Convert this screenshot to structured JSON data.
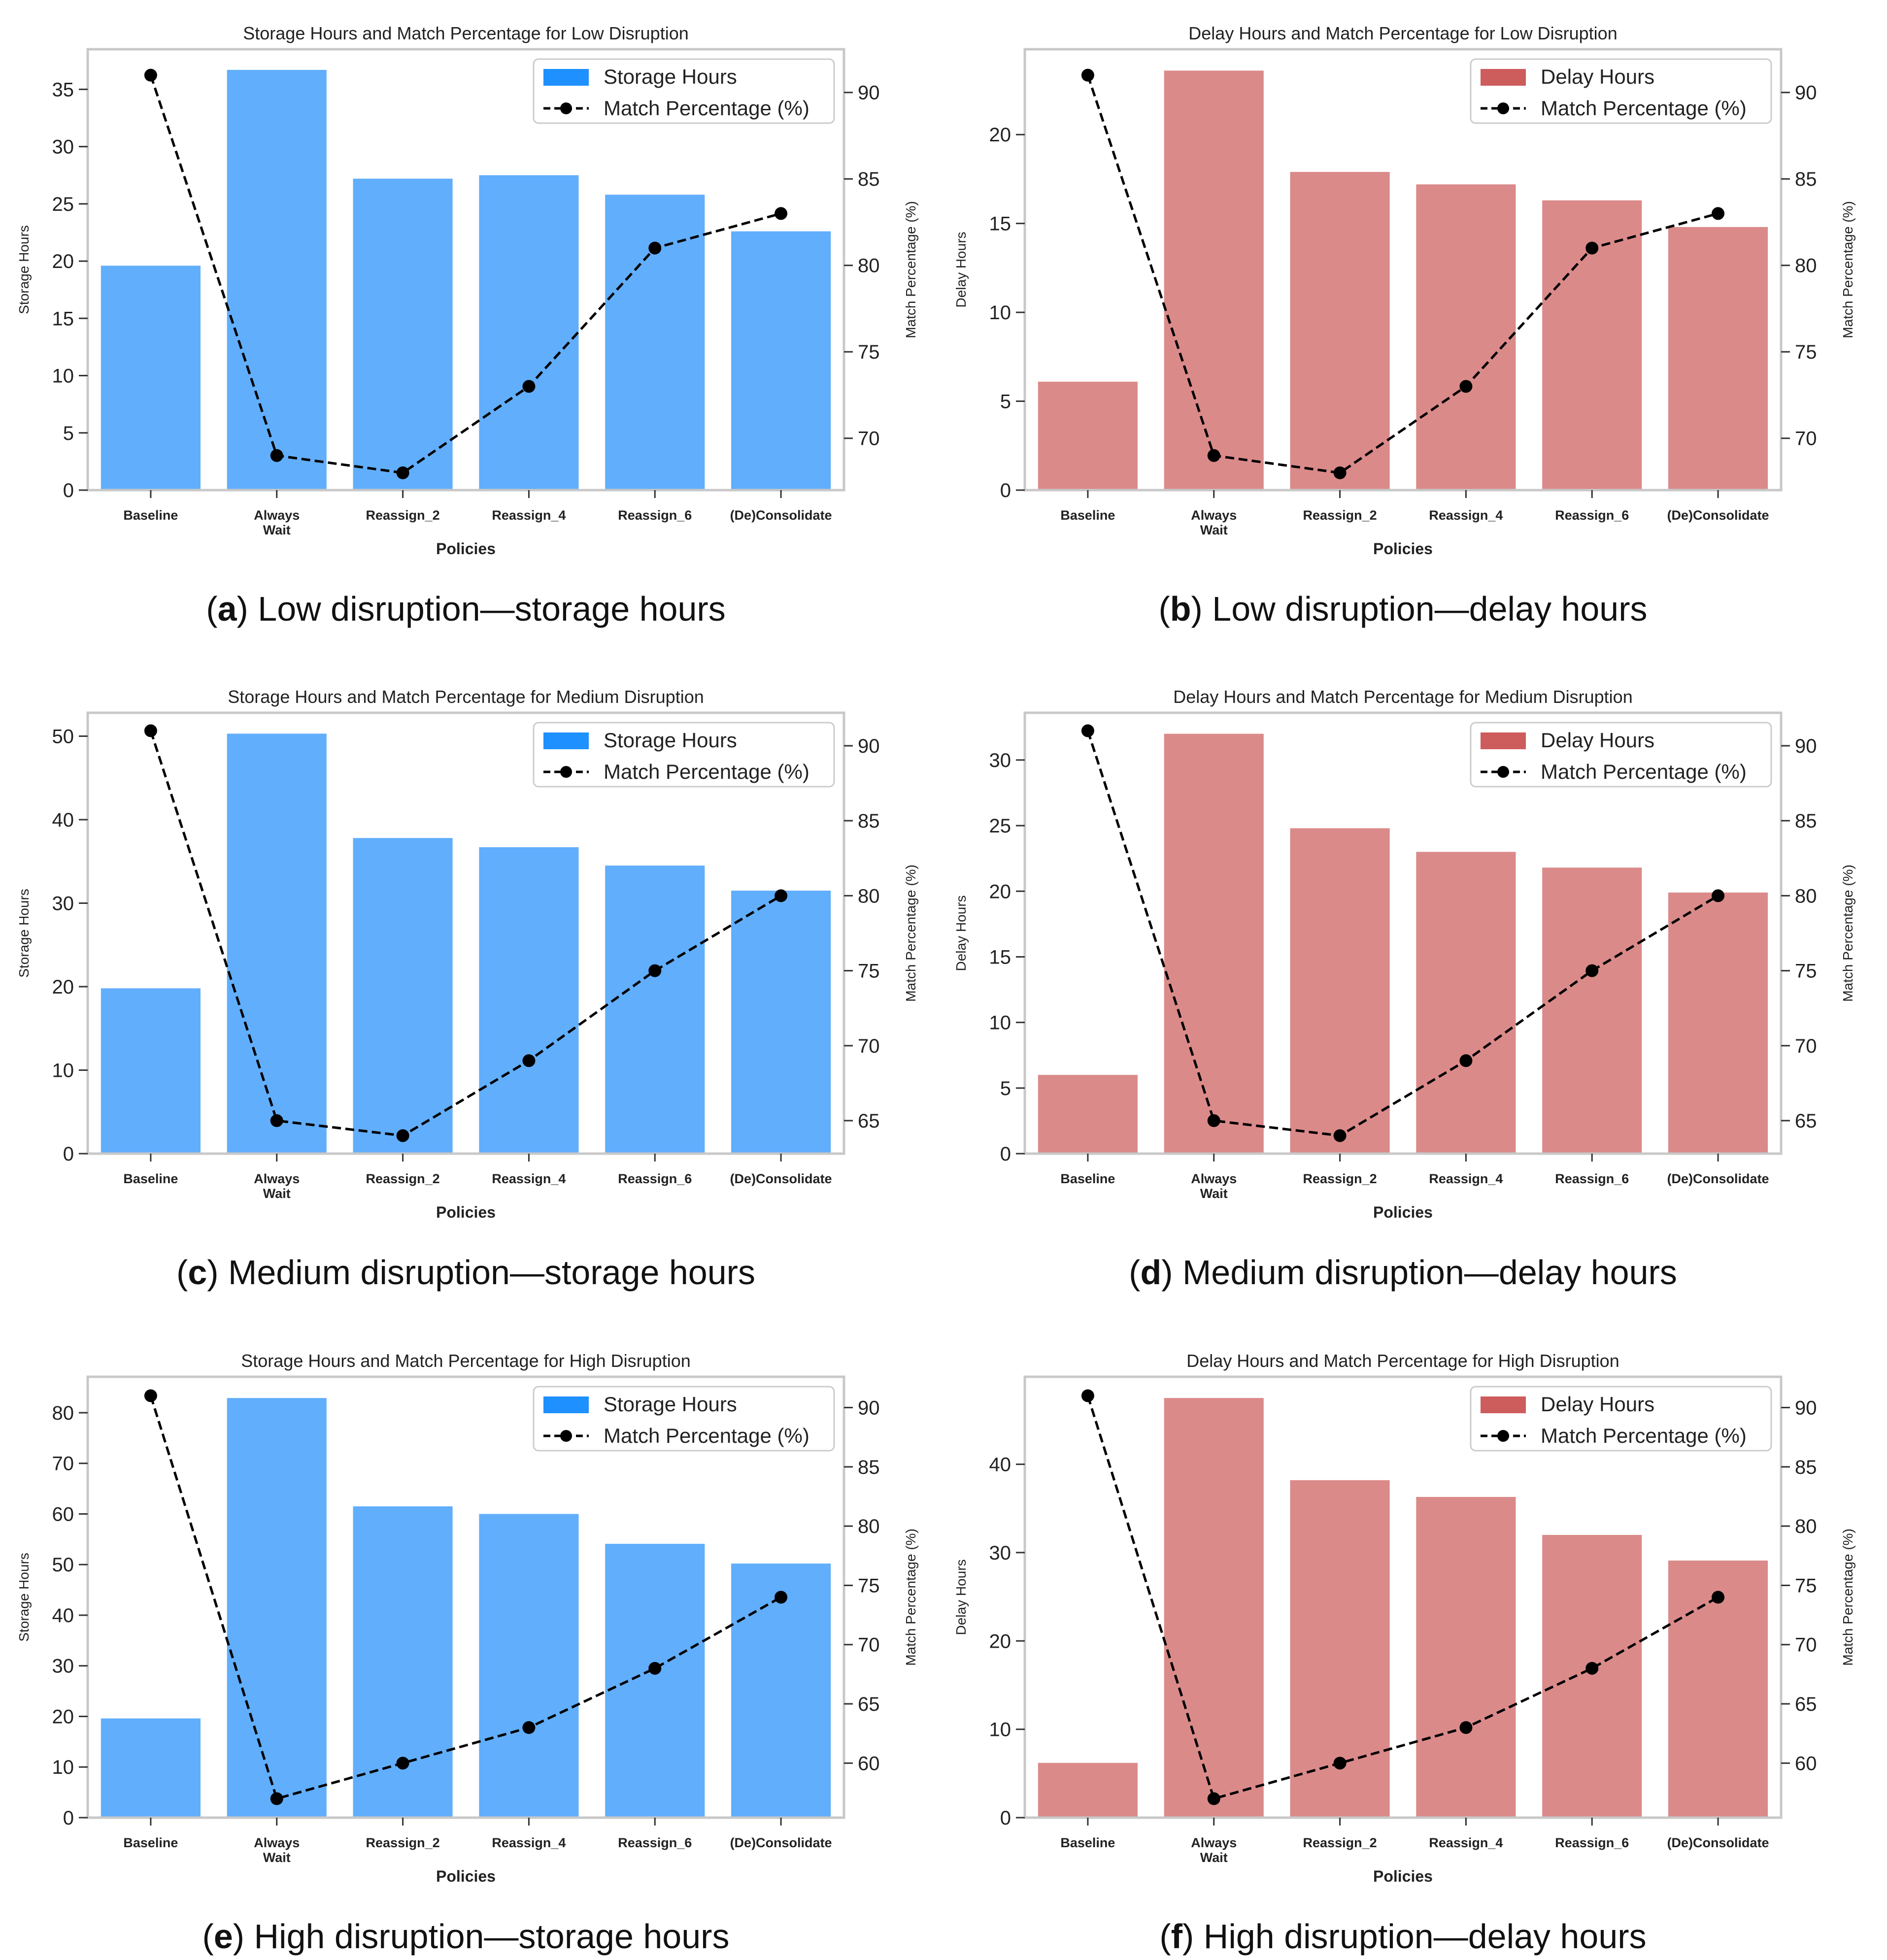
{
  "figure": {
    "panels": [
      {
        "letter": "a",
        "caption": "Low disruption—storage hours"
      },
      {
        "letter": "b",
        "caption": "Low disruption—delay hours"
      },
      {
        "letter": "c",
        "caption": "Medium disruption—storage hours"
      },
      {
        "letter": "d",
        "caption": "Medium disruption—delay hours"
      },
      {
        "letter": "e",
        "caption": "High disruption—storage hours"
      },
      {
        "letter": "f",
        "caption": "High disruption—delay hours"
      }
    ]
  },
  "chart_data": [
    {
      "type": "bar",
      "title": "Storage Hours and Match Percentage for Low Disruption",
      "xlabel": "Policies",
      "ylabel": "Storage Hours",
      "y2label": "Match Percentage (%)",
      "categories": [
        "Baseline",
        "Always Wait",
        "Reassign_2",
        "Reassign_4",
        "Reassign_6",
        "(De)Consolidate"
      ],
      "series": [
        {
          "name": "Storage Hours",
          "type": "bar",
          "axis": "left",
          "color": "#61aefc",
          "legend_color": "#1e90ff",
          "values": [
            19.6,
            36.7,
            27.2,
            27.5,
            25.8,
            22.6
          ]
        },
        {
          "name": "Match Percentage (%)",
          "type": "line",
          "axis": "right",
          "color": "#000000",
          "values": [
            91,
            69,
            68,
            73,
            81,
            83
          ]
        }
      ],
      "ylim": [
        0,
        38.5
      ],
      "yticks": [
        0,
        5,
        10,
        15,
        20,
        25,
        30,
        35
      ],
      "y2lim": [
        67,
        92.5
      ],
      "y2ticks": [
        70,
        75,
        80,
        85,
        90
      ],
      "legend": "top-right",
      "grid": false
    },
    {
      "type": "bar",
      "title": "Delay Hours and Match Percentage for Low Disruption",
      "xlabel": "Policies",
      "ylabel": "Delay Hours",
      "y2label": "Match Percentage (%)",
      "categories": [
        "Baseline",
        "Always Wait",
        "Reassign_2",
        "Reassign_4",
        "Reassign_6",
        "(De)Consolidate"
      ],
      "series": [
        {
          "name": "Delay Hours",
          "type": "bar",
          "axis": "left",
          "color": "#db8a8a",
          "legend_color": "#cd5c5c",
          "values": [
            6.1,
            23.6,
            17.9,
            17.2,
            16.3,
            14.8
          ]
        },
        {
          "name": "Match Percentage (%)",
          "type": "line",
          "axis": "right",
          "color": "#000000",
          "values": [
            91,
            69,
            68,
            73,
            81,
            83
          ]
        }
      ],
      "ylim": [
        0,
        24.8
      ],
      "yticks": [
        0,
        5,
        10,
        15,
        20
      ],
      "y2lim": [
        67,
        92.5
      ],
      "y2ticks": [
        70,
        75,
        80,
        85,
        90
      ],
      "legend": "top-right",
      "grid": false
    },
    {
      "type": "bar",
      "title": "Storage Hours and Match Percentage for Medium Disruption",
      "xlabel": "Policies",
      "ylabel": "Storage Hours",
      "y2label": "Match Percentage (%)",
      "categories": [
        "Baseline",
        "Always Wait",
        "Reassign_2",
        "Reassign_4",
        "Reassign_6",
        "(De)Consolidate"
      ],
      "series": [
        {
          "name": "Storage Hours",
          "type": "bar",
          "axis": "left",
          "color": "#61aefc",
          "legend_color": "#1e90ff",
          "values": [
            19.8,
            50.3,
            37.8,
            36.7,
            34.5,
            31.5
          ]
        },
        {
          "name": "Match Percentage (%)",
          "type": "line",
          "axis": "right",
          "color": "#000000",
          "values": [
            91,
            65,
            64,
            69,
            75,
            80
          ]
        }
      ],
      "ylim": [
        0,
        52.8
      ],
      "yticks": [
        0,
        10,
        20,
        30,
        40,
        50
      ],
      "y2lim": [
        62.8,
        92.2
      ],
      "y2ticks": [
        65,
        70,
        75,
        80,
        85,
        90
      ],
      "legend": "top-right",
      "grid": false
    },
    {
      "type": "bar",
      "title": "Delay Hours and Match Percentage for Medium Disruption",
      "xlabel": "Policies",
      "ylabel": "Delay Hours",
      "y2label": "Match Percentage (%)",
      "categories": [
        "Baseline",
        "Always Wait",
        "Reassign_2",
        "Reassign_4",
        "Reassign_6",
        "(De)Consolidate"
      ],
      "series": [
        {
          "name": "Delay Hours",
          "type": "bar",
          "axis": "left",
          "color": "#db8a8a",
          "legend_color": "#cd5c5c",
          "values": [
            6.0,
            32.0,
            24.8,
            23.0,
            21.8,
            19.9
          ]
        },
        {
          "name": "Match Percentage (%)",
          "type": "line",
          "axis": "right",
          "color": "#000000",
          "values": [
            91,
            65,
            64,
            69,
            75,
            80
          ]
        }
      ],
      "ylim": [
        0,
        33.6
      ],
      "yticks": [
        0,
        5,
        10,
        15,
        20,
        25,
        30
      ],
      "y2lim": [
        62.8,
        92.2
      ],
      "y2ticks": [
        65,
        70,
        75,
        80,
        85,
        90
      ],
      "legend": "top-right",
      "grid": false
    },
    {
      "type": "bar",
      "title": "Storage Hours and Match Percentage for High Disruption",
      "xlabel": "Policies",
      "ylabel": "Storage Hours",
      "y2label": "Match Percentage (%)",
      "categories": [
        "Baseline",
        "Always Wait",
        "Reassign_2",
        "Reassign_4",
        "Reassign_6",
        "(De)Consolidate"
      ],
      "series": [
        {
          "name": "Storage Hours",
          "type": "bar",
          "axis": "left",
          "color": "#61aefc",
          "legend_color": "#1e90ff",
          "values": [
            19.6,
            82.9,
            61.5,
            60.0,
            54.1,
            50.2
          ]
        },
        {
          "name": "Match Percentage (%)",
          "type": "line",
          "axis": "right",
          "color": "#000000",
          "values": [
            91,
            57,
            60,
            63,
            68,
            74
          ]
        }
      ],
      "ylim": [
        0,
        87.1
      ],
      "yticks": [
        0,
        10,
        20,
        30,
        40,
        50,
        60,
        70,
        80
      ],
      "y2lim": [
        55.4,
        92.6
      ],
      "y2ticks": [
        60,
        65,
        70,
        75,
        80,
        85,
        90
      ],
      "legend": "top-right",
      "grid": false
    },
    {
      "type": "bar",
      "title": "Delay Hours and Match Percentage for High Disruption",
      "xlabel": "Policies",
      "ylabel": "Delay Hours",
      "y2label": "Match Percentage (%)",
      "categories": [
        "Baseline",
        "Always Wait",
        "Reassign_2",
        "Reassign_4",
        "Reassign_6",
        "(De)Consolidate"
      ],
      "series": [
        {
          "name": "Delay Hours",
          "type": "bar",
          "axis": "left",
          "color": "#db8a8a",
          "legend_color": "#cd5c5c",
          "values": [
            6.2,
            47.5,
            38.2,
            36.3,
            32.0,
            29.1
          ]
        },
        {
          "name": "Match Percentage (%)",
          "type": "line",
          "axis": "right",
          "color": "#000000",
          "values": [
            91,
            57,
            60,
            63,
            68,
            74
          ]
        }
      ],
      "ylim": [
        0,
        49.9
      ],
      "yticks": [
        0,
        10,
        20,
        30,
        40
      ],
      "y2lim": [
        55.4,
        92.6
      ],
      "y2ticks": [
        60,
        65,
        70,
        75,
        80,
        85,
        90
      ],
      "legend": "top-right",
      "grid": false
    }
  ]
}
